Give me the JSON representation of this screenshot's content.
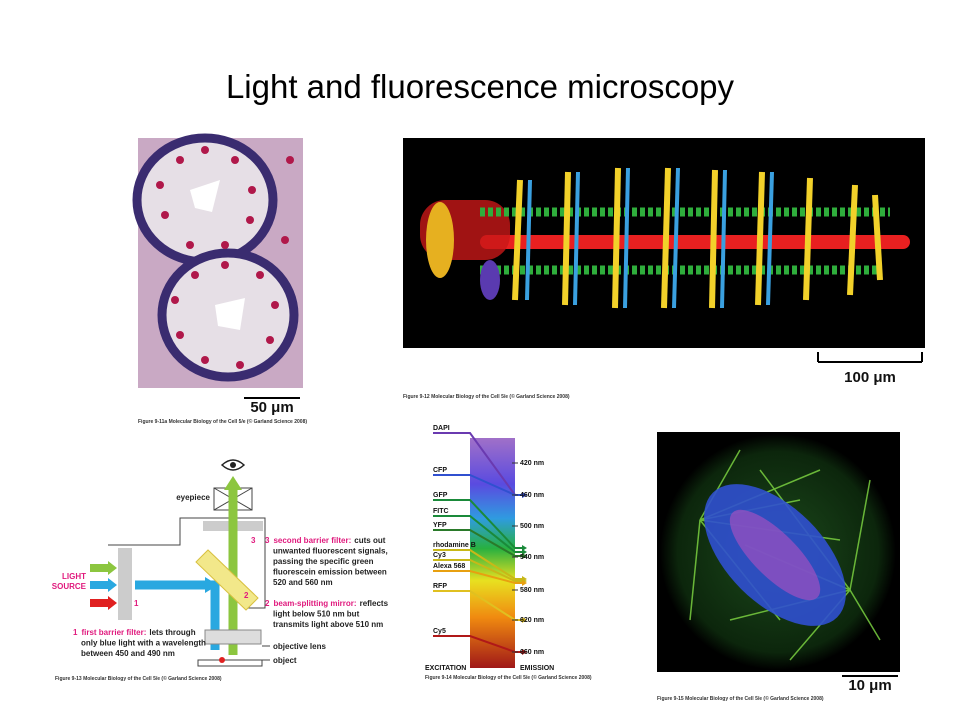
{
  "title": "Light and fluorescence microscopy",
  "histology": {
    "scale_bar": "50 μm",
    "caption": "Figure 9-11a  Molecular Biology of the Cell 5/e (© Garland Science 2008)"
  },
  "embryo": {
    "scale_bar": "100 μm",
    "caption": "Figure 9-12  Molecular Biology of the Cell 5/e (© Garland Science 2008)"
  },
  "microscope": {
    "eyepiece": "eyepiece",
    "light_source": [
      "LIGHT",
      "SOURCE"
    ],
    "marker_1": "1",
    "marker_2": "2",
    "marker_3": "3",
    "note_3": {
      "number": "3",
      "heading": "second barrier filter:",
      "lines": [
        "cuts out",
        "unwanted fluorescent signals,",
        "passing the specific green",
        "fluorescein emission between",
        "520 and 560 nm"
      ]
    },
    "note_2": {
      "number": "2",
      "heading": "beam-splitting mirror:",
      "lines": [
        "reflects",
        "light below 510 nm but",
        "transmits light above 510 nm"
      ]
    },
    "note_1": {
      "number": "1",
      "heading": "first barrier filter:",
      "lines": [
        "lets through",
        "only blue light with a wavelength",
        "between 450 and 490 nm"
      ]
    },
    "objective_lens": "objective lens",
    "object": "object",
    "caption": "Figure 9-13  Molecular Biology of the Cell 5/e (© Garland Science 2008)"
  },
  "spectrum": {
    "dyes": [
      "DAPI",
      "CFP",
      "GFP",
      "FITC",
      "YFP",
      "rhodamine B",
      "Cy3",
      "Alexa 568",
      "RFP",
      "Cy5"
    ],
    "wavelengths": [
      "420 nm",
      "460 nm",
      "500 nm",
      "540 nm",
      "580 nm",
      "620 nm",
      "660 nm"
    ],
    "excitation": "EXCITATION",
    "emission": "EMISSION",
    "caption": "Figure 9-14  Molecular Biology of the Cell 5/e (© Garland Science 2008)"
  },
  "spindle": {
    "scale_bar": "10 μm",
    "caption": "Figure 9-15  Molecular Biology of the Cell 5/e (© Garland Science 2008)"
  }
}
